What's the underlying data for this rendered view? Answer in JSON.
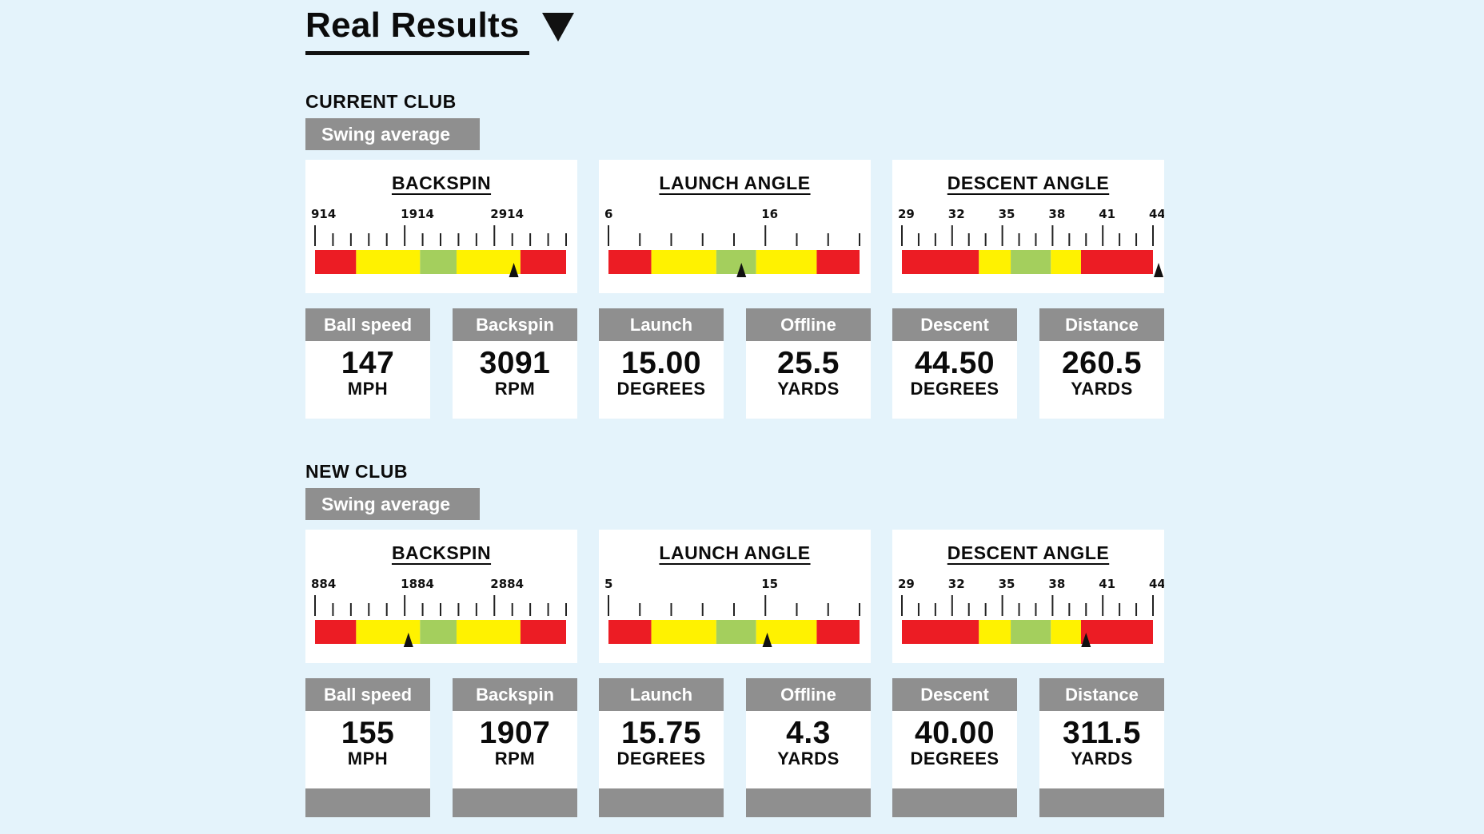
{
  "header": {
    "title": "Real Results"
  },
  "sections": [
    {
      "label": "CURRENT CLUB",
      "badge": "Swing average",
      "gauges": [
        {
          "title": "BACKSPIN",
          "labels": [
            "914",
            "1914",
            "2914"
          ],
          "min": 914,
          "max": 3664,
          "ticks": 15,
          "major_every": 5,
          "zones": [
            [
              "red",
              914,
              1364
            ],
            [
              "yellow",
              1364,
              2064
            ],
            [
              "green",
              2064,
              2464
            ],
            [
              "yellow",
              2464,
              3164
            ],
            [
              "red",
              3164,
              3664
            ]
          ],
          "marker": 3091
        },
        {
          "title": "LAUNCH ANGLE",
          "labels": [
            "6",
            "16"
          ],
          "min": 6,
          "max": 23,
          "ticks": 9,
          "major_every": 5,
          "zones": [
            [
              "red",
              6,
              8.9
            ],
            [
              "yellow",
              8.9,
              13.3
            ],
            [
              "green",
              13.3,
              16
            ],
            [
              "yellow",
              16,
              20.1
            ],
            [
              "red",
              20.1,
              23
            ]
          ],
          "marker": 15.0
        },
        {
          "title": "DESCENT ANGLE",
          "labels": [
            "29",
            "32",
            "35",
            "38",
            "41",
            "44"
          ],
          "min": 29,
          "max": 44,
          "ticks": 16,
          "major_every": 3,
          "zones": [
            [
              "red",
              29,
              33.6
            ],
            [
              "yellow",
              33.6,
              35.5
            ],
            [
              "green",
              35.5,
              37.9
            ],
            [
              "yellow",
              37.9,
              39.7
            ],
            [
              "red",
              39.7,
              44
            ]
          ],
          "marker": 44.5
        }
      ],
      "stats": [
        {
          "label": "Ball speed",
          "value": "147",
          "unit": "MPH"
        },
        {
          "label": "Backspin",
          "value": "3091",
          "unit": "RPM"
        },
        {
          "label": "Launch",
          "value": "15.00",
          "unit": "DEGREES"
        },
        {
          "label": "Offline",
          "value": "25.5",
          "unit": "YARDS"
        },
        {
          "label": "Descent",
          "value": "44.50",
          "unit": "DEGREES"
        },
        {
          "label": "Distance",
          "value": "260.5",
          "unit": "YARDS"
        }
      ]
    },
    {
      "label": "NEW CLUB",
      "badge": "Swing average",
      "gauges": [
        {
          "title": "BACKSPIN",
          "labels": [
            "884",
            "1884",
            "2884"
          ],
          "min": 884,
          "max": 3634,
          "ticks": 15,
          "major_every": 5,
          "zones": [
            [
              "red",
              884,
              1334
            ],
            [
              "yellow",
              1334,
              2034
            ],
            [
              "green",
              2034,
              2434
            ],
            [
              "yellow",
              2434,
              3134
            ],
            [
              "red",
              3134,
              3634
            ]
          ],
          "marker": 1907
        },
        {
          "title": "LAUNCH ANGLE",
          "labels": [
            "5",
            "15"
          ],
          "min": 5,
          "max": 22,
          "ticks": 9,
          "major_every": 5,
          "zones": [
            [
              "red",
              5,
              7.9
            ],
            [
              "yellow",
              7.9,
              12.3
            ],
            [
              "green",
              12.3,
              15
            ],
            [
              "yellow",
              15,
              19.1
            ],
            [
              "red",
              19.1,
              22
            ]
          ],
          "marker": 15.75
        },
        {
          "title": "DESCENT ANGLE",
          "labels": [
            "29",
            "32",
            "35",
            "38",
            "41",
            "44"
          ],
          "min": 29,
          "max": 44,
          "ticks": 16,
          "major_every": 3,
          "zones": [
            [
              "red",
              29,
              33.6
            ],
            [
              "yellow",
              33.6,
              35.5
            ],
            [
              "green",
              35.5,
              37.9
            ],
            [
              "yellow",
              37.9,
              39.7
            ],
            [
              "red",
              39.7,
              44
            ]
          ],
          "marker": 40.0
        }
      ],
      "stats": [
        {
          "label": "Ball speed",
          "value": "155",
          "unit": "MPH"
        },
        {
          "label": "Backspin",
          "value": "1907",
          "unit": "RPM"
        },
        {
          "label": "Launch",
          "value": "15.75",
          "unit": "DEGREES"
        },
        {
          "label": "Offline",
          "value": "4.3",
          "unit": "YARDS"
        },
        {
          "label": "Descent",
          "value": "40.00",
          "unit": "DEGREES"
        },
        {
          "label": "Distance",
          "value": "311.5",
          "unit": "YARDS"
        }
      ]
    }
  ],
  "colors": {
    "red": "#ec1c24",
    "yellow": "#fff200",
    "green": "#a4cf5d",
    "gray": "#8f8f8f",
    "background": "#e4f3fb"
  }
}
